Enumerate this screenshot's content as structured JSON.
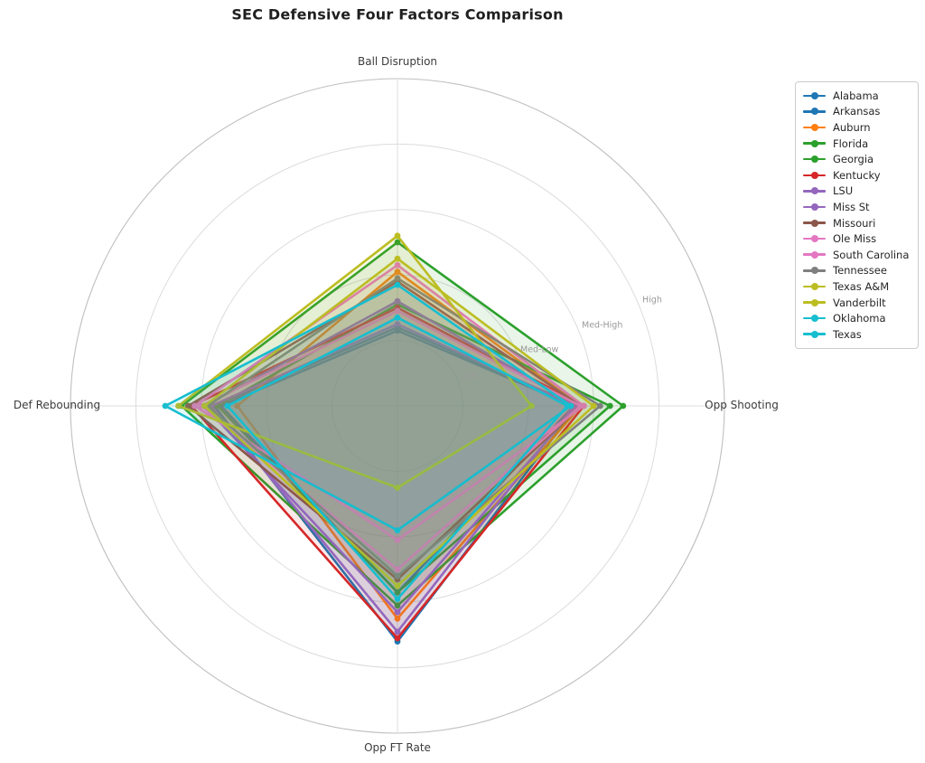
{
  "title": "SEC Defensive Four Factors Comparison",
  "chart_data": {
    "type": "radar",
    "title": "SEC Defensive Four Factors Comparison",
    "categories": [
      "Ball Disruption",
      "Opp Shooting",
      "Opp FT Rate",
      "Def Rebounding"
    ],
    "r_range": [
      0,
      100
    ],
    "radial_ticks": [
      {
        "label": "Low",
        "value": 20
      },
      {
        "label": "Med-Low",
        "value": 40
      },
      {
        "label": "Med-High",
        "value": 60
      },
      {
        "label": "High",
        "value": 80
      }
    ],
    "grid": true,
    "legend_position": "upper right outside",
    "colors": {
      "grid": "#dcdcdc",
      "spine": "#bfbfbf",
      "tick_text": "#9a9a9a",
      "axis_text": "#3c3c3c",
      "title_text": "#1f1f1f",
      "background": "#ffffff"
    },
    "series": [
      {
        "name": "Alabama",
        "color": "#1f77b4",
        "values": [
          24,
          55,
          72,
          56
        ]
      },
      {
        "name": "Arkansas",
        "color": "#1f77b4",
        "values": [
          23,
          54,
          57,
          54
        ]
      },
      {
        "name": "Auburn",
        "color": "#ff7f0e",
        "values": [
          41,
          56,
          65,
          49
        ]
      },
      {
        "name": "Florida",
        "color": "#2ca02c",
        "values": [
          50,
          69,
          61,
          66
        ]
      },
      {
        "name": "Georgia",
        "color": "#2ca02c",
        "values": [
          31,
          65,
          57,
          55
        ]
      },
      {
        "name": "Kentucky",
        "color": "#d62728",
        "values": [
          30,
          57,
          71,
          63
        ]
      },
      {
        "name": "LSU",
        "color": "#9467bd",
        "values": [
          32,
          55,
          63,
          59
        ]
      },
      {
        "name": "Miss St",
        "color": "#9467bd",
        "values": [
          25,
          54,
          69,
          57
        ]
      },
      {
        "name": "Missouri",
        "color": "#8c564b",
        "values": [
          38,
          56,
          53,
          64
        ]
      },
      {
        "name": "Ole Miss",
        "color": "#e377c2",
        "values": [
          43,
          57,
          41,
          62
        ]
      },
      {
        "name": "South Carolina",
        "color": "#e377c2",
        "values": [
          29,
          56,
          50,
          60
        ]
      },
      {
        "name": "Tennessee",
        "color": "#7f7f7f",
        "values": [
          39,
          62,
          52,
          58
        ]
      },
      {
        "name": "Texas A&M",
        "color": "#bcbd22",
        "values": [
          52,
          41,
          25,
          67
        ]
      },
      {
        "name": "Vanderbilt",
        "color": "#bcbd22",
        "values": [
          45,
          60,
          55,
          59
        ]
      },
      {
        "name": "Oklahoma",
        "color": "#17becf",
        "values": [
          37,
          53,
          38,
          71
        ]
      },
      {
        "name": "Texas",
        "color": "#17becf",
        "values": [
          27,
          52,
          59,
          52
        ]
      }
    ]
  }
}
